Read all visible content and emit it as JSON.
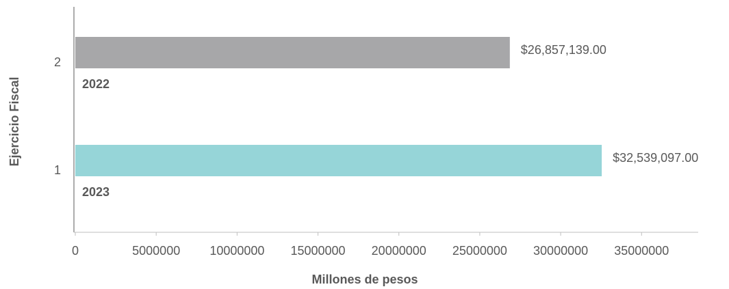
{
  "chart_data": {
    "type": "bar",
    "orientation": "horizontal",
    "x_label": "Millones de pesos",
    "y_label": "Ejercicio Fiscal",
    "categories": [
      "2",
      "1"
    ],
    "bar_labels": [
      "2022",
      "2023"
    ],
    "values": [
      26857139,
      32539097
    ],
    "value_labels": [
      "$26,857,139.00",
      "$32,539,097.00"
    ],
    "colors": [
      "#a7a7a9",
      "#96d5d8"
    ],
    "xlim": [
      0,
      38500000
    ],
    "xticks": [
      0,
      5000000,
      10000000,
      15000000,
      20000000,
      25000000,
      30000000,
      35000000
    ]
  }
}
